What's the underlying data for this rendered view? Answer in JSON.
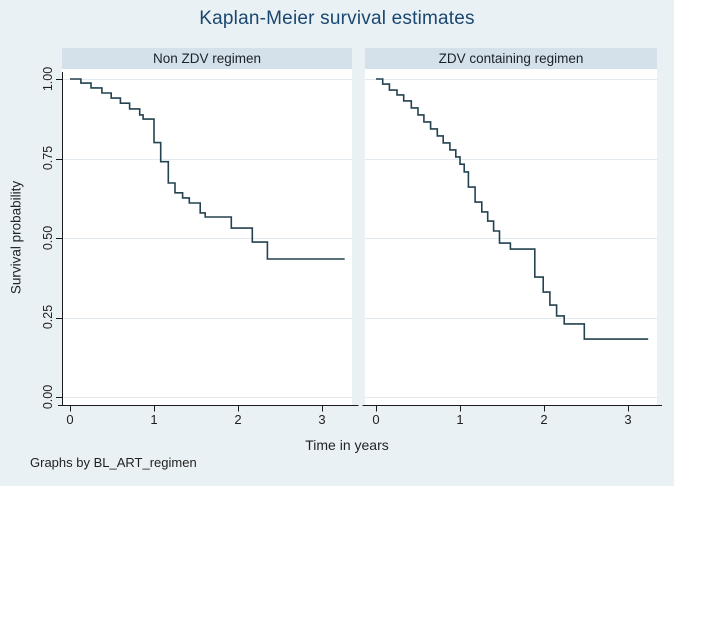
{
  "title": "Kaplan-Meier survival estimates",
  "note": "Graphs by BL_ART_regimen",
  "axes": {
    "x_title": "Time in years",
    "y_title": "Survival probability",
    "x_tick_labels": [
      "0",
      "1",
      "2",
      "3"
    ],
    "y_tick_labels": [
      "1.00",
      "0.75",
      "0.50",
      "0.25",
      "0.00"
    ]
  },
  "colors": {
    "outer_background": "#eaf1f4",
    "header_band": "#d4e1ea",
    "plot_background": "#ffffff",
    "gridline": "#e2eaef",
    "axis": "#1a1a1a",
    "curve": "#24424f",
    "title_text": "#1a476f",
    "label_text": "#1f1f1f"
  },
  "chart_data": {
    "type": "line",
    "subtype": "kaplan-meier-step",
    "title": "Kaplan-Meier survival estimates",
    "xlabel": "Time in years",
    "ylabel": "Survival probability",
    "xlim": [
      0,
      3.3
    ],
    "ylim": [
      0,
      1
    ],
    "x_ticks": [
      0,
      1,
      2,
      3
    ],
    "y_ticks": [
      1.0,
      0.75,
      0.5,
      0.25,
      0.0
    ],
    "grid": true,
    "legend": "none",
    "by_variable": "BL_ART_regimen",
    "panels": [
      {
        "title": "Non ZDV regimen",
        "series": [
          {
            "name": "KM survival estimate, Non ZDV regimen",
            "points": [
              [
                0,
                1.0
              ],
              [
                0.13,
                0.987
              ],
              [
                0.25,
                0.972
              ],
              [
                0.38,
                0.956
              ],
              [
                0.49,
                0.94
              ],
              [
                0.6,
                0.924
              ],
              [
                0.71,
                0.906
              ],
              [
                0.83,
                0.887
              ],
              [
                0.87,
                0.874
              ],
              [
                1.0,
                0.8
              ],
              [
                1.08,
                0.74
              ],
              [
                1.17,
                0.673
              ],
              [
                1.25,
                0.642
              ],
              [
                1.34,
                0.626
              ],
              [
                1.42,
                0.61
              ],
              [
                1.55,
                0.579
              ],
              [
                1.61,
                0.566
              ],
              [
                1.92,
                0.531
              ],
              [
                2.17,
                0.487
              ],
              [
                2.35,
                0.434
              ],
              [
                3.27,
                0.434
              ]
            ]
          }
        ]
      },
      {
        "title": "ZDV containing regimen",
        "series": [
          {
            "name": "KM survival estimate, ZDV containing regimen",
            "points": [
              [
                0,
                1.0
              ],
              [
                0.08,
                0.984
              ],
              [
                0.16,
                0.965
              ],
              [
                0.25,
                0.95
              ],
              [
                0.33,
                0.931
              ],
              [
                0.42,
                0.909
              ],
              [
                0.5,
                0.887
              ],
              [
                0.57,
                0.865
              ],
              [
                0.65,
                0.843
              ],
              [
                0.73,
                0.821
              ],
              [
                0.8,
                0.799
              ],
              [
                0.88,
                0.777
              ],
              [
                0.95,
                0.755
              ],
              [
                1.0,
                0.732
              ],
              [
                1.05,
                0.708
              ],
              [
                1.1,
                0.66
              ],
              [
                1.18,
                0.613
              ],
              [
                1.26,
                0.582
              ],
              [
                1.33,
                0.553
              ],
              [
                1.4,
                0.522
              ],
              [
                1.47,
                0.484
              ],
              [
                1.6,
                0.465
              ],
              [
                1.89,
                0.377
              ],
              [
                1.99,
                0.33
              ],
              [
                2.07,
                0.289
              ],
              [
                2.15,
                0.255
              ],
              [
                2.24,
                0.23
              ],
              [
                2.48,
                0.182
              ],
              [
                3.24,
                0.182
              ]
            ]
          }
        ]
      }
    ]
  }
}
